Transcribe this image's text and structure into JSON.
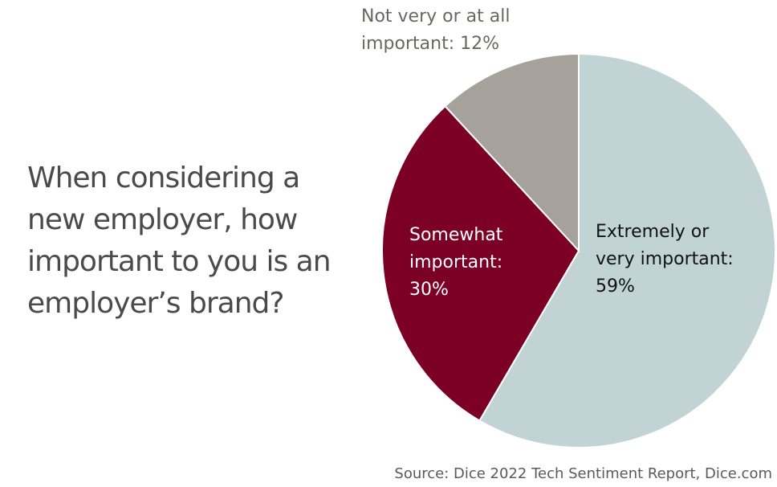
{
  "question": {
    "lines": [
      "When considering a",
      "new employer, how",
      "important to you is an",
      "employer’s brand?"
    ]
  },
  "source": "Source: Dice 2022 Tech Sentiment Report, Dice.com",
  "chart_data": {
    "type": "pie",
    "slices": [
      {
        "label_lines": [
          "Extremely or",
          "very important:",
          "59%"
        ],
        "value": 59,
        "color": "#c2d3d5",
        "text_color": "#111111"
      },
      {
        "label_lines": [
          "Somewhat",
          "important:",
          "30%"
        ],
        "value": 30,
        "color": "#7c0026",
        "text_color": "#ffffff"
      },
      {
        "label_lines": [
          "Not very or at all",
          "important: 12%"
        ],
        "value": 12,
        "color": "#a6a19b",
        "text_color": "#6a6662"
      }
    ],
    "start": "12 o'clock",
    "direction": "clockwise",
    "slice_border_color": "#ffffff"
  }
}
